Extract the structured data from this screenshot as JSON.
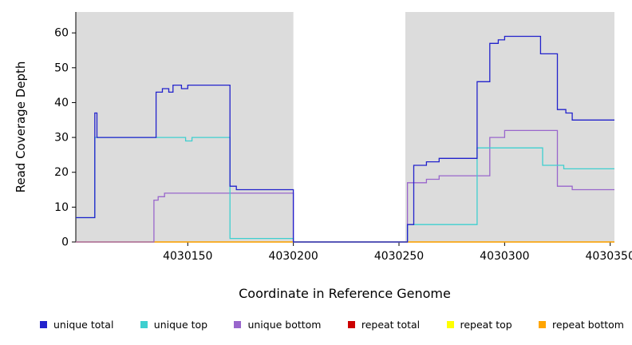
{
  "figure": {
    "background": "#ffffff",
    "panel_fill": "#dcdcdc",
    "axis_color": "#000000"
  },
  "chart_data": {
    "type": "line",
    "step": true,
    "title": "",
    "xlabel": "Coordinate in Reference Genome",
    "ylabel": "Read Coverage Depth",
    "xlim": [
      4030097,
      4030352
    ],
    "ylim": [
      0,
      66
    ],
    "xticks": [
      4030150,
      4030200,
      4030250,
      4030300,
      4030350
    ],
    "yticks": [
      0,
      10,
      20,
      30,
      40,
      50,
      60
    ],
    "grid": false,
    "legend_position": "bottom",
    "masked_region": {
      "x0": 4030200,
      "x1": 4030253,
      "fill": "#ffffff"
    },
    "shaded_regions": [
      {
        "x0": 4030097,
        "x1": 4030200,
        "fill": "#dcdcdc"
      },
      {
        "x0": 4030253,
        "x1": 4030352,
        "fill": "#dcdcdc"
      }
    ],
    "legend": [
      {
        "label": "unique total",
        "color": "#2222cc"
      },
      {
        "label": "unique top",
        "color": "#3ecfcf"
      },
      {
        "label": "unique bottom",
        "color": "#9966cc"
      },
      {
        "label": "repeat total",
        "color": "#cc0000"
      },
      {
        "label": "repeat top",
        "color": "#ffff00"
      },
      {
        "label": "repeat bottom",
        "color": "#ffa500"
      }
    ],
    "series": [
      {
        "name": "repeat total",
        "color": "#cc0000",
        "points": [
          [
            4030097,
            0
          ],
          [
            4030352,
            0
          ]
        ]
      },
      {
        "name": "repeat top",
        "color": "#ffff00",
        "points": [
          [
            4030097,
            0
          ],
          [
            4030352,
            0
          ]
        ]
      },
      {
        "name": "repeat bottom",
        "color": "#ffa500",
        "points": [
          [
            4030097,
            0
          ],
          [
            4030352,
            0
          ]
        ]
      },
      {
        "name": "unique bottom",
        "color": "#9966cc",
        "points": [
          [
            4030097,
            0
          ],
          [
            4030134,
            12
          ],
          [
            4030136,
            13
          ],
          [
            4030139,
            14
          ],
          [
            4030200,
            0
          ],
          [
            4030254,
            17
          ],
          [
            4030263,
            18
          ],
          [
            4030269,
            19
          ],
          [
            4030293,
            30
          ],
          [
            4030300,
            32
          ],
          [
            4030317,
            32
          ],
          [
            4030325,
            16
          ],
          [
            4030332,
            15
          ],
          [
            4030352,
            15
          ]
        ]
      },
      {
        "name": "unique top",
        "color": "#3ecfcf",
        "points": [
          [
            4030097,
            7
          ],
          [
            4030106,
            30
          ],
          [
            4030149,
            29
          ],
          [
            4030152,
            30
          ],
          [
            4030170,
            1
          ],
          [
            4030200,
            0
          ],
          [
            4030254,
            5
          ],
          [
            4030287,
            27
          ],
          [
            4030318,
            22
          ],
          [
            4030328,
            21
          ],
          [
            4030352,
            21
          ]
        ]
      },
      {
        "name": "unique total",
        "color": "#2222cc",
        "points": [
          [
            4030097,
            7
          ],
          [
            4030106,
            37
          ],
          [
            4030107,
            30
          ],
          [
            4030135,
            43
          ],
          [
            4030138,
            44
          ],
          [
            4030141,
            43
          ],
          [
            4030143,
            45
          ],
          [
            4030147,
            44
          ],
          [
            4030150,
            45
          ],
          [
            4030170,
            16
          ],
          [
            4030173,
            15
          ],
          [
            4030200,
            0
          ],
          [
            4030254,
            5
          ],
          [
            4030257,
            22
          ],
          [
            4030263,
            23
          ],
          [
            4030269,
            24
          ],
          [
            4030287,
            46
          ],
          [
            4030293,
            57
          ],
          [
            4030297,
            58
          ],
          [
            4030300,
            59
          ],
          [
            4030317,
            54
          ],
          [
            4030325,
            38
          ],
          [
            4030329,
            37
          ],
          [
            4030332,
            35
          ],
          [
            4030352,
            35
          ]
        ]
      }
    ]
  }
}
